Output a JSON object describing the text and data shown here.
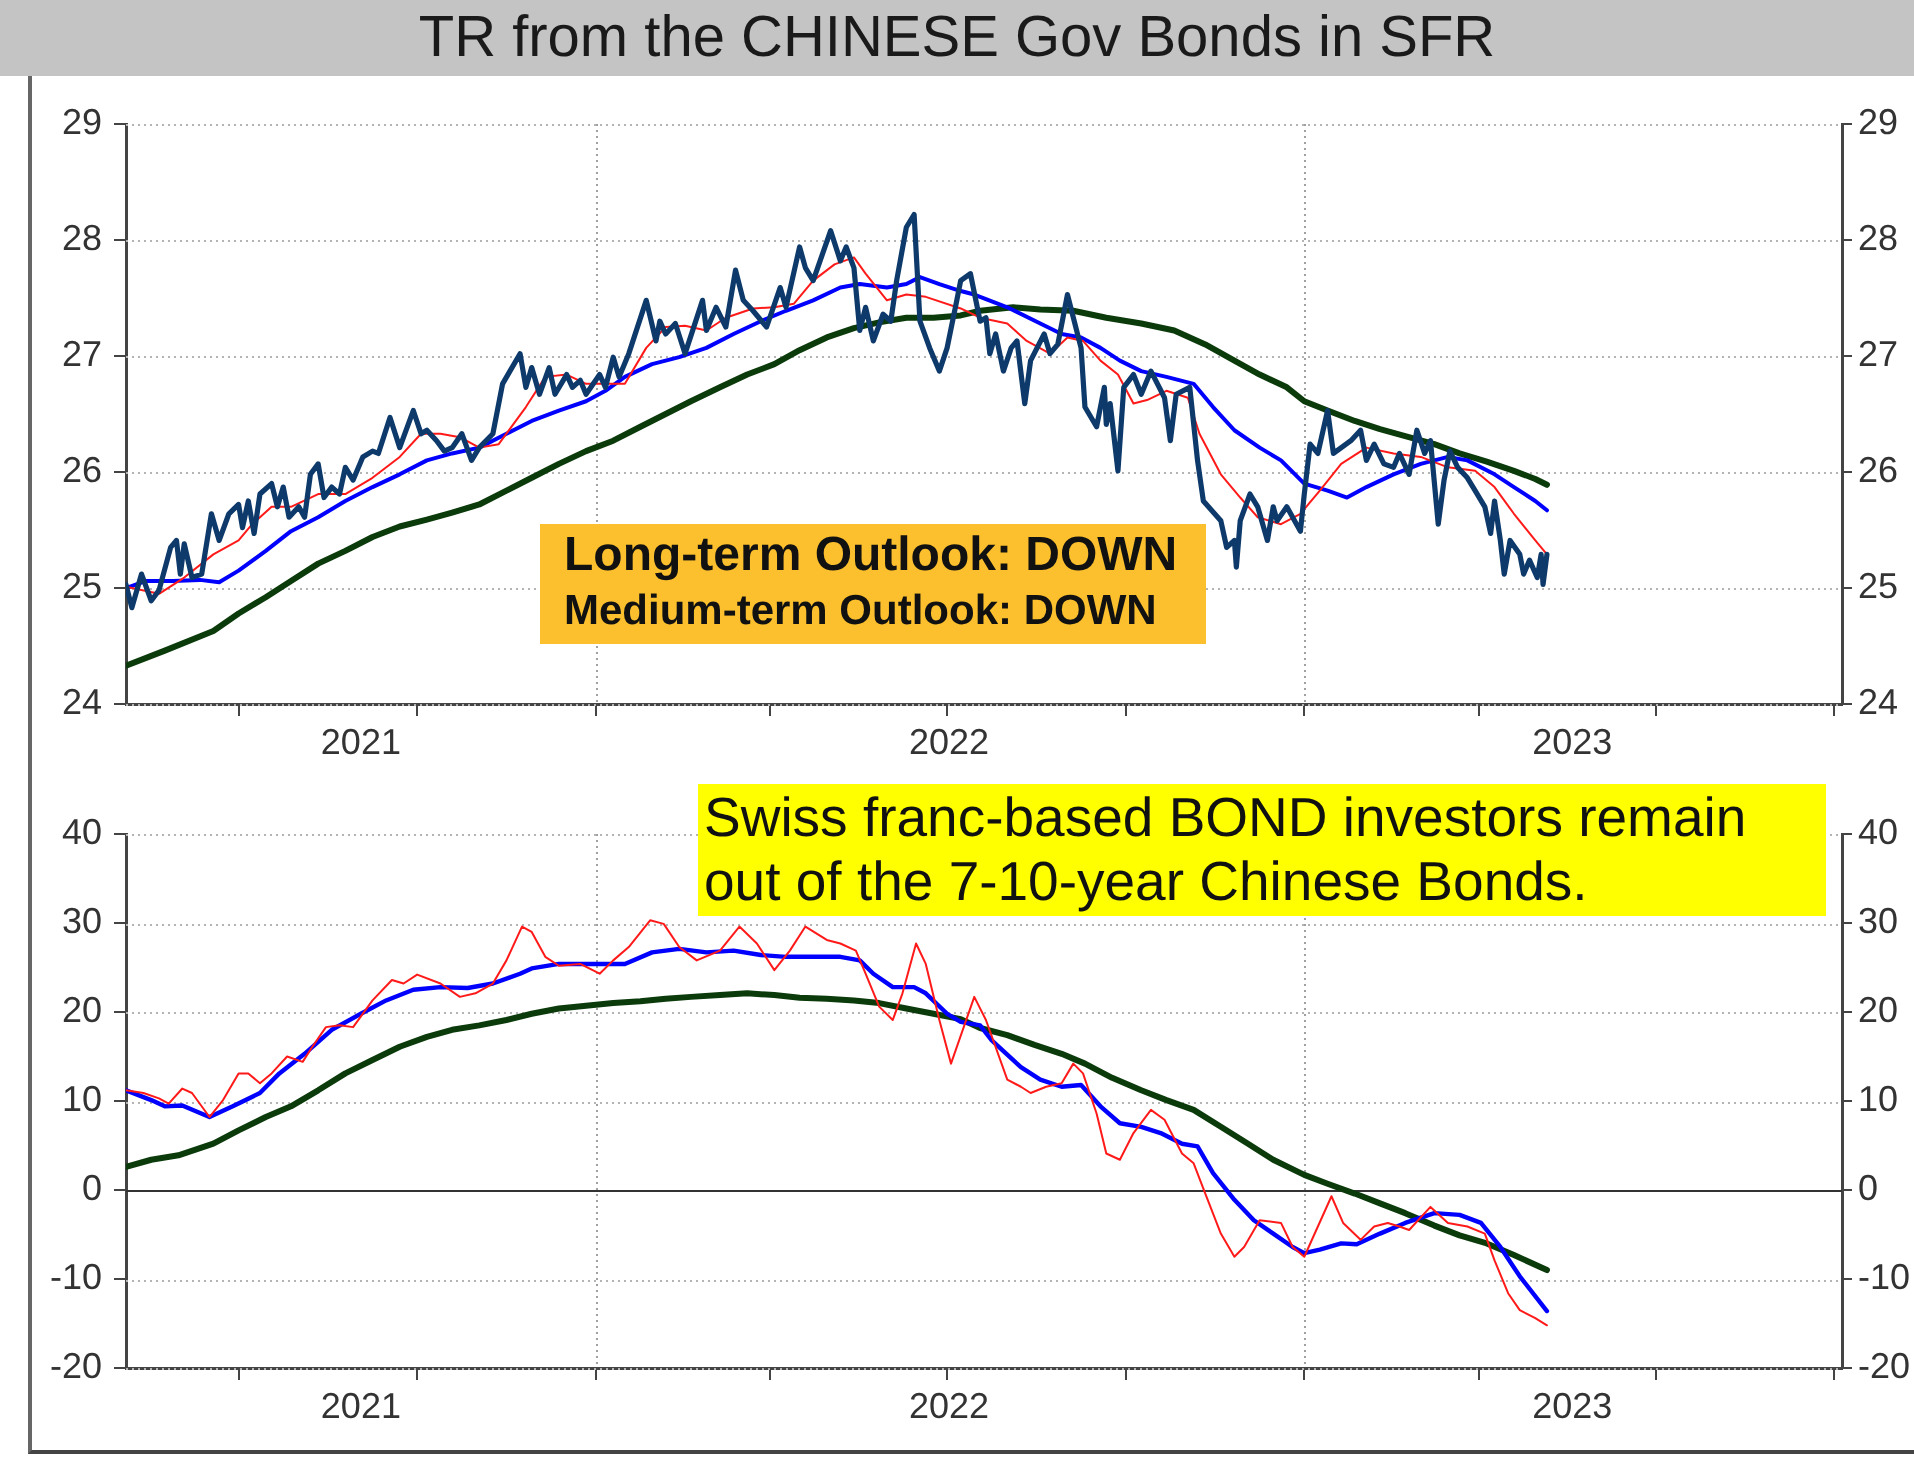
{
  "chart_data": [
    {
      "type": "line",
      "title": "TR from the CHINESE Gov Bonds in SFR",
      "annotations": [
        "Long-term Outlook: DOWN",
        "Medium-term Outlook: DOWN"
      ],
      "xlim": [
        "2021-05-04",
        "2023-10-05"
      ],
      "xticks": [
        {
          "value": "2021-07-01",
          "label": null
        },
        {
          "value": "2021-09-02",
          "label": "2021"
        },
        {
          "value": "2021-10-01",
          "label": null
        },
        {
          "value": "2022-01-01",
          "label": null
        },
        {
          "value": "2022-04-01",
          "label": null
        },
        {
          "value": "2022-07-01",
          "label": null
        },
        {
          "value": "2022-07-02",
          "label": "2022"
        },
        {
          "value": "2022-10-01",
          "label": null
        },
        {
          "value": "2023-01-01",
          "label": null
        },
        {
          "value": "2023-04-01",
          "label": null
        },
        {
          "value": "2023-05-19",
          "label": "2023"
        },
        {
          "value": "2023-07-01",
          "label": null
        },
        {
          "value": "2023-10-01",
          "label": null
        }
      ],
      "ylim": [
        24,
        29
      ],
      "yticks": [
        24,
        25,
        26,
        27,
        28,
        29
      ],
      "y2lim": [
        24,
        29
      ],
      "y2ticks": [
        24,
        25,
        26,
        27,
        28,
        29
      ],
      "grid": "y",
      "ref_lines": [
        {
          "axis": "x",
          "value": "2022-01-01",
          "color": "#a0a0a0",
          "line_style": "dotted"
        },
        {
          "axis": "x",
          "value": "2023-01-01",
          "color": "#a0a0a0",
          "line_style": "dotted"
        }
      ],
      "series": [
        {
          "color": "#0d3a6a",
          "x": [
            "2021-05-04",
            "2021-05-07",
            "2021-05-12",
            "2021-05-17",
            "2021-05-21",
            "2021-05-27",
            "2021-05-30",
            "2021-06-01",
            "2021-06-03",
            "2021-06-07",
            "2021-06-12",
            "2021-06-17",
            "2021-06-21",
            "2021-06-26",
            "2021-07-01",
            "2021-07-03",
            "2021-07-06",
            "2021-07-09",
            "2021-07-12",
            "2021-07-18",
            "2021-07-21",
            "2021-07-24",
            "2021-07-27",
            "2021-08-01",
            "2021-08-04",
            "2021-08-07",
            "2021-08-11",
            "2021-08-14",
            "2021-08-18",
            "2021-08-22",
            "2021-08-25",
            "2021-08-29",
            "2021-09-03",
            "2021-09-08",
            "2021-09-11",
            "2021-09-17",
            "2021-09-22",
            "2021-09-29",
            "2021-10-03",
            "2021-10-06",
            "2021-10-11",
            "2021-10-15",
            "2021-10-19",
            "2021-10-24",
            "2021-10-29",
            "2021-11-02",
            "2021-11-09",
            "2021-11-14",
            "2021-11-23",
            "2021-11-26",
            "2021-11-29",
            "2021-12-03",
            "2021-12-08",
            "2021-12-11",
            "2021-12-17",
            "2021-12-20",
            "2021-12-24",
            "2021-12-27",
            "2022-01-03",
            "2022-01-06",
            "2022-01-10",
            "2022-01-13",
            "2022-01-18",
            "2022-01-27",
            "2022-02-01",
            "2022-02-03",
            "2022-02-06",
            "2022-02-11",
            "2022-02-16",
            "2022-02-25",
            "2022-02-27",
            "2022-03-04",
            "2022-03-09",
            "2022-03-14",
            "2022-03-18",
            "2022-03-23",
            "2022-03-30",
            "2022-04-06",
            "2022-04-09",
            "2022-04-16",
            "2022-04-19",
            "2022-04-23",
            "2022-05-02",
            "2022-05-07",
            "2022-05-10",
            "2022-05-14",
            "2022-05-17",
            "2022-05-20",
            "2022-05-24",
            "2022-05-29",
            "2022-06-02",
            "2022-06-05",
            "2022-06-10",
            "2022-06-14",
            "2022-06-17",
            "2022-06-22",
            "2022-06-27",
            "2022-07-01",
            "2022-07-06",
            "2022-07-08",
            "2022-07-13",
            "2022-07-18",
            "2022-07-21",
            "2022-07-23",
            "2022-07-26",
            "2022-07-30",
            "2022-08-03",
            "2022-08-06",
            "2022-08-10",
            "2022-08-13",
            "2022-08-20",
            "2022-08-23",
            "2022-08-27",
            "2022-09-01",
            "2022-09-08",
            "2022-09-10",
            "2022-09-16",
            "2022-09-20",
            "2022-09-21",
            "2022-09-23",
            "2022-09-27",
            "2022-09-30",
            "2022-10-05",
            "2022-10-09",
            "2022-10-14",
            "2022-10-21",
            "2022-10-24",
            "2022-10-27",
            "2022-11-03",
            "2022-11-07",
            "2022-11-10",
            "2022-11-19",
            "2022-11-22",
            "2022-11-26",
            "2022-11-27",
            "2022-11-29",
            "2022-12-04",
            "2022-12-08",
            "2022-12-13",
            "2022-12-16",
            "2022-12-18",
            "2022-12-23",
            "2022-12-30",
            "2023-01-01",
            "2023-01-04",
            "2023-01-08",
            "2023-01-13",
            "2023-01-16",
            "2023-01-25",
            "2023-01-30",
            "2023-02-02",
            "2023-02-06",
            "2023-02-11",
            "2023-02-16",
            "2023-02-19",
            "2023-02-24",
            "2023-02-28",
            "2023-03-04",
            "2023-03-07",
            "2023-03-11",
            "2023-03-14",
            "2023-03-17",
            "2023-03-21",
            "2023-03-26",
            "2023-03-30",
            "2023-04-04",
            "2023-04-07",
            "2023-04-09",
            "2023-04-12",
            "2023-04-14",
            "2023-04-17",
            "2023-04-22",
            "2023-04-24",
            "2023-04-27",
            "2023-05-01",
            "2023-05-03",
            "2023-05-04",
            "2023-05-06"
          ],
          "values": [
            25.03,
            24.83,
            25.12,
            24.89,
            24.98,
            25.35,
            25.41,
            25.12,
            25.38,
            25.09,
            25.12,
            25.64,
            25.41,
            25.64,
            25.72,
            25.52,
            25.75,
            25.47,
            25.81,
            25.9,
            25.7,
            25.87,
            25.61,
            25.7,
            25.61,
            25.98,
            26.07,
            25.78,
            25.87,
            25.81,
            26.04,
            25.93,
            26.13,
            26.18,
            26.16,
            26.47,
            26.21,
            26.53,
            26.33,
            26.36,
            26.27,
            26.18,
            26.21,
            26.33,
            26.1,
            26.21,
            26.33,
            26.76,
            27.02,
            26.73,
            26.9,
            26.67,
            26.9,
            26.67,
            26.84,
            26.73,
            26.79,
            26.67,
            26.84,
            26.73,
            26.99,
            26.82,
            27.02,
            27.48,
            27.13,
            27.3,
            27.19,
            27.28,
            27.02,
            27.48,
            27.22,
            27.42,
            27.25,
            27.74,
            27.48,
            27.39,
            27.25,
            27.59,
            27.42,
            27.94,
            27.76,
            27.65,
            28.08,
            27.82,
            27.94,
            27.76,
            27.22,
            27.42,
            27.13,
            27.36,
            27.3,
            27.65,
            28.11,
            28.22,
            27.3,
            27.07,
            26.87,
            27.07,
            27.48,
            27.65,
            27.71,
            27.3,
            27.33,
            27.02,
            27.19,
            26.87,
            27.07,
            27.13,
            26.59,
            26.96,
            27.19,
            27.02,
            27.1,
            27.53,
            27.07,
            26.56,
            26.39,
            26.73,
            26.41,
            26.59,
            26.01,
            26.73,
            26.84,
            26.67,
            26.87,
            26.64,
            26.27,
            26.67,
            26.73,
            26.1,
            25.75,
            25.58,
            25.35,
            25.41,
            25.18,
            25.58,
            25.81,
            25.7,
            25.41,
            25.7,
            25.58,
            25.7,
            25.49,
            25.81,
            26.24,
            26.16,
            26.53,
            26.16,
            26.27,
            26.36,
            26.1,
            26.24,
            26.07,
            26.04,
            26.16,
            25.98,
            26.36,
            26.16,
            26.27,
            25.55,
            25.93,
            26.18,
            26.04,
            25.95,
            25.84,
            25.7,
            25.47,
            25.75,
            25.41,
            25.12,
            25.41,
            25.29,
            25.12,
            25.24,
            25.09,
            25.29,
            25.03,
            25.29
          ]
        },
        {
          "color": "#ff1a1a",
          "x": [
            "2021-05-04",
            "2021-05-21",
            "2021-06-03",
            "2021-06-18",
            "2021-07-01",
            "2021-07-08",
            "2021-07-18",
            "2021-07-28",
            "2021-08-11",
            "2021-08-25",
            "2021-09-08",
            "2021-09-22",
            "2021-10-03",
            "2021-10-13",
            "2021-10-23",
            "2021-11-02",
            "2021-11-12",
            "2021-11-26",
            "2021-12-06",
            "2021-12-17",
            "2021-12-27",
            "2022-01-06",
            "2022-01-16",
            "2022-01-27",
            "2022-02-06",
            "2022-02-16",
            "2022-02-27",
            "2022-03-09",
            "2022-03-23",
            "2022-04-03",
            "2022-04-13",
            "2022-04-23",
            "2022-05-04",
            "2022-05-14",
            "2022-05-20",
            "2022-05-31",
            "2022-06-10",
            "2022-06-20",
            "2022-07-08",
            "2022-07-18",
            "2022-08-01",
            "2022-08-11",
            "2022-08-23",
            "2022-09-01",
            "2022-09-09",
            "2022-09-18",
            "2022-09-27",
            "2022-10-05",
            "2022-10-12",
            "2022-10-22",
            "2022-11-02",
            "2022-11-08",
            "2022-11-19",
            "2022-11-29",
            "2022-12-08",
            "2022-12-20",
            "2022-12-30",
            "2023-01-09",
            "2023-01-20",
            "2023-02-02",
            "2023-02-16",
            "2023-03-02",
            "2023-03-16",
            "2023-03-30",
            "2023-04-09",
            "2023-04-19",
            "2023-04-30",
            "2023-05-06"
          ],
          "values": [
            25.01,
            24.95,
            25.09,
            25.29,
            25.41,
            25.55,
            25.7,
            25.7,
            25.81,
            25.81,
            25.95,
            26.13,
            26.33,
            26.33,
            26.3,
            26.21,
            26.24,
            26.56,
            26.82,
            26.84,
            26.76,
            26.76,
            26.76,
            27.07,
            27.25,
            27.26,
            27.22,
            27.33,
            27.41,
            27.42,
            27.45,
            27.65,
            27.79,
            27.85,
            27.71,
            27.48,
            27.53,
            27.51,
            27.41,
            27.33,
            27.28,
            27.13,
            27.02,
            27.16,
            27.13,
            26.96,
            26.84,
            26.59,
            26.62,
            26.7,
            26.64,
            26.33,
            25.98,
            25.78,
            25.61,
            25.55,
            25.64,
            25.84,
            26.07,
            26.21,
            26.16,
            26.13,
            26.04,
            26.01,
            25.87,
            25.64,
            25.41,
            25.29
          ]
        },
        {
          "color": "#0000ff",
          "x": [
            "2021-05-04",
            "2021-05-14",
            "2021-05-28",
            "2021-06-11",
            "2021-06-21",
            "2021-07-01",
            "2021-07-15",
            "2021-07-28",
            "2021-08-11",
            "2021-08-25",
            "2021-09-08",
            "2021-09-22",
            "2021-10-06",
            "2021-10-19",
            "2021-11-02",
            "2021-11-16",
            "2021-11-29",
            "2021-12-13",
            "2021-12-27",
            "2022-01-06",
            "2022-01-16",
            "2022-01-30",
            "2022-02-13",
            "2022-02-27",
            "2022-03-13",
            "2022-03-27",
            "2022-04-09",
            "2022-04-23",
            "2022-05-07",
            "2022-05-17",
            "2022-05-31",
            "2022-06-10",
            "2022-06-17",
            "2022-06-27",
            "2022-07-08",
            "2022-07-15",
            "2022-08-01",
            "2022-08-18",
            "2022-08-29",
            "2022-09-08",
            "2022-09-18",
            "2022-09-28",
            "2022-10-09",
            "2022-10-22",
            "2022-11-05",
            "2022-11-15",
            "2022-11-26",
            "2022-12-09",
            "2022-12-20",
            "2023-01-01",
            "2023-01-13",
            "2023-01-23",
            "2023-02-02",
            "2023-02-16",
            "2023-03-02",
            "2023-03-16",
            "2023-03-26",
            "2023-04-09",
            "2023-04-19",
            "2023-04-30",
            "2023-05-06"
          ],
          "values": [
            25.0,
            25.06,
            25.06,
            25.07,
            25.05,
            25.15,
            25.32,
            25.49,
            25.61,
            25.75,
            25.87,
            25.98,
            26.1,
            26.16,
            26.21,
            26.33,
            26.44,
            26.53,
            26.61,
            26.7,
            26.82,
            26.93,
            26.99,
            27.07,
            27.19,
            27.3,
            27.39,
            27.48,
            27.59,
            27.62,
            27.59,
            27.62,
            27.68,
            27.62,
            27.56,
            27.53,
            27.42,
            27.28,
            27.19,
            27.16,
            27.07,
            26.96,
            26.87,
            26.82,
            26.76,
            26.56,
            26.36,
            26.21,
            26.1,
            25.9,
            25.84,
            25.78,
            25.87,
            25.98,
            26.07,
            26.13,
            26.1,
            25.98,
            25.87,
            25.75,
            25.67
          ]
        },
        {
          "color": "#0b3a0b",
          "x": [
            "2021-05-04",
            "2021-05-24",
            "2021-06-18",
            "2021-07-01",
            "2021-07-15",
            "2021-07-28",
            "2021-08-11",
            "2021-08-25",
            "2021-09-08",
            "2021-09-22",
            "2021-10-06",
            "2021-10-19",
            "2021-11-02",
            "2021-11-16",
            "2021-11-29",
            "2021-12-13",
            "2021-12-27",
            "2022-01-10",
            "2022-01-24",
            "2022-02-06",
            "2022-02-19",
            "2022-03-06",
            "2022-03-20",
            "2022-04-03",
            "2022-04-16",
            "2022-04-30",
            "2022-05-14",
            "2022-05-27",
            "2022-06-10",
            "2022-06-24",
            "2022-07-08",
            "2022-07-18",
            "2022-08-04",
            "2022-08-18",
            "2022-09-04",
            "2022-09-21",
            "2022-10-09",
            "2022-10-26",
            "2022-11-11",
            "2022-11-26",
            "2022-12-09",
            "2022-12-23",
            "2023-01-01",
            "2023-01-13",
            "2023-01-27",
            "2023-02-09",
            "2023-02-22",
            "2023-03-09",
            "2023-03-22",
            "2023-04-05",
            "2023-04-19",
            "2023-04-30",
            "2023-05-06"
          ],
          "values": [
            24.33,
            24.46,
            24.63,
            24.78,
            24.92,
            25.06,
            25.21,
            25.32,
            25.44,
            25.53,
            25.59,
            25.65,
            25.72,
            25.84,
            25.95,
            26.07,
            26.18,
            26.27,
            26.39,
            26.5,
            26.61,
            26.73,
            26.84,
            26.93,
            27.05,
            27.16,
            27.24,
            27.29,
            27.33,
            27.33,
            27.35,
            27.39,
            27.42,
            27.4,
            27.39,
            27.33,
            27.28,
            27.22,
            27.1,
            26.96,
            26.84,
            26.73,
            26.61,
            26.53,
            26.44,
            26.37,
            26.31,
            26.24,
            26.16,
            26.09,
            26.01,
            25.94,
            25.89
          ]
        }
      ]
    },
    {
      "type": "line",
      "annotations": [
        "Swiss franc-based BOND investors remain out of the 7-10-year Chinese Bonds."
      ],
      "xlim": [
        "2021-05-04",
        "2023-10-05"
      ],
      "xticks": [
        {
          "value": "2021-07-01",
          "label": null
        },
        {
          "value": "2021-09-02",
          "label": "2021"
        },
        {
          "value": "2021-10-01",
          "label": null
        },
        {
          "value": "2022-01-01",
          "label": null
        },
        {
          "value": "2022-04-01",
          "label": null
        },
        {
          "value": "2022-07-01",
          "label": null
        },
        {
          "value": "2022-07-02",
          "label": "2022"
        },
        {
          "value": "2022-10-01",
          "label": null
        },
        {
          "value": "2023-01-01",
          "label": null
        },
        {
          "value": "2023-04-01",
          "label": null
        },
        {
          "value": "2023-05-19",
          "label": "2023"
        },
        {
          "value": "2023-07-01",
          "label": null
        },
        {
          "value": "2023-10-01",
          "label": null
        }
      ],
      "ylim": [
        -20,
        40
      ],
      "yticks": [
        -20,
        -10,
        0,
        10,
        20,
        30,
        40
      ],
      "y2lim": [
        -20,
        40
      ],
      "y2ticks": [
        -20,
        -10,
        0,
        10,
        20,
        30,
        40
      ],
      "grid": "y",
      "ref_lines": [
        {
          "axis": "x",
          "value": "2022-01-01",
          "color": "#a0a0a0",
          "line_style": "dotted"
        },
        {
          "axis": "x",
          "value": "2023-01-01",
          "color": "#a0a0a0",
          "line_style": "dotted"
        },
        {
          "axis": "y",
          "value": 0,
          "color": "#333333",
          "line_style": "solid"
        }
      ],
      "series": [
        {
          "color": "#ff1a1a",
          "x": [
            "2021-05-04",
            "2021-05-13",
            "2021-05-21",
            "2021-05-26",
            "2021-06-02",
            "2021-06-07",
            "2021-06-16",
            "2021-06-23",
            "2021-07-01",
            "2021-07-06",
            "2021-07-12",
            "2021-07-18",
            "2021-07-26",
            "2021-08-03",
            "2021-08-08",
            "2021-08-15",
            "2021-08-22",
            "2021-08-29",
            "2021-09-08",
            "2021-09-18",
            "2021-09-24",
            "2021-10-01",
            "2021-10-13",
            "2021-10-23",
            "2021-10-31",
            "2021-11-09",
            "2021-11-16",
            "2021-11-24",
            "2021-11-29",
            "2021-12-06",
            "2021-12-13",
            "2021-12-24",
            "2022-01-03",
            "2022-01-10",
            "2022-01-18",
            "2022-01-29",
            "2022-02-05",
            "2022-02-13",
            "2022-02-22",
            "2022-03-06",
            "2022-03-16",
            "2022-03-25",
            "2022-04-03",
            "2022-04-11",
            "2022-04-19",
            "2022-04-30",
            "2022-05-07",
            "2022-05-15",
            "2022-05-20",
            "2022-05-27",
            "2022-06-03",
            "2022-06-08",
            "2022-06-15",
            "2022-06-20",
            "2022-06-27",
            "2022-07-03",
            "2022-07-15",
            "2022-07-21",
            "2022-08-01",
            "2022-08-08",
            "2022-08-13",
            "2022-08-21",
            "2022-08-29",
            "2022-09-04",
            "2022-09-09",
            "2022-09-16",
            "2022-09-21",
            "2022-09-28",
            "2022-10-05",
            "2022-10-14",
            "2022-10-21",
            "2022-10-30",
            "2022-11-05",
            "2022-11-11",
            "2022-11-19",
            "2022-11-26",
            "2022-12-01",
            "2022-12-09",
            "2022-12-20",
            "2022-12-26",
            "2023-01-01",
            "2023-01-08",
            "2023-01-15",
            "2023-01-21",
            "2023-01-30",
            "2023-02-06",
            "2023-02-13",
            "2023-02-19",
            "2023-02-24",
            "2023-03-07",
            "2023-03-16",
            "2023-03-26",
            "2023-04-04",
            "2023-04-09",
            "2023-04-16",
            "2023-04-22",
            "2023-04-30",
            "2023-05-06"
          ],
          "values": [
            11.2,
            10.9,
            10.3,
            9.7,
            11.4,
            10.9,
            8.2,
            10.1,
            13.1,
            13.1,
            12.0,
            13.1,
            15.0,
            14.4,
            16.1,
            18.3,
            18.5,
            18.3,
            21.3,
            23.6,
            23.2,
            24.2,
            23.2,
            21.7,
            22.1,
            23.2,
            25.8,
            29.6,
            29.0,
            26.2,
            25.2,
            25.4,
            24.3,
            25.8,
            27.3,
            30.3,
            29.9,
            27.3,
            25.8,
            26.9,
            29.6,
            27.7,
            24.7,
            26.9,
            29.6,
            28.1,
            27.7,
            26.9,
            24.3,
            20.6,
            19.1,
            22.1,
            27.7,
            25.4,
            19.1,
            14.2,
            21.7,
            19.1,
            12.4,
            11.6,
            10.9,
            11.6,
            12.0,
            14.2,
            13.1,
            8.6,
            4.1,
            3.4,
            6.4,
            9.0,
            7.9,
            4.1,
            3.0,
            -0.4,
            -4.9,
            -7.5,
            -6.4,
            -3.4,
            -3.7,
            -6.4,
            -7.5,
            -4.1,
            -0.7,
            -3.7,
            -5.6,
            -4.1,
            -3.7,
            -4.1,
            -4.5,
            -1.9,
            -3.7,
            -4.1,
            -4.9,
            -7.9,
            -11.6,
            -13.5,
            -14.4,
            -15.2
          ]
        },
        {
          "color": "#0000ff",
          "x": [
            "2021-05-04",
            "2021-05-17",
            "2021-05-24",
            "2021-06-02",
            "2021-06-16",
            "2021-06-28",
            "2021-07-12",
            "2021-07-22",
            "2021-08-04",
            "2021-08-18",
            "2021-09-02",
            "2021-09-15",
            "2021-09-29",
            "2021-10-13",
            "2021-10-27",
            "2021-11-09",
            "2021-11-23",
            "2021-11-29",
            "2021-12-13",
            "2021-12-27",
            "2022-01-16",
            "2022-01-30",
            "2022-02-13",
            "2022-02-27",
            "2022-03-13",
            "2022-03-27",
            "2022-04-09",
            "2022-04-23",
            "2022-05-07",
            "2022-05-17",
            "2022-05-24",
            "2022-06-03",
            "2022-06-14",
            "2022-06-20",
            "2022-07-01",
            "2022-07-08",
            "2022-07-18",
            "2022-07-24",
            "2022-08-08",
            "2022-08-18",
            "2022-08-29",
            "2022-09-08",
            "2022-09-18",
            "2022-09-28",
            "2022-10-09",
            "2022-10-19",
            "2022-10-30",
            "2022-11-07",
            "2022-11-15",
            "2022-11-26",
            "2022-12-06",
            "2022-12-16",
            "2022-12-26",
            "2023-01-01",
            "2023-01-09",
            "2023-01-20",
            "2023-01-28",
            "2023-02-09",
            "2023-02-22",
            "2023-03-09",
            "2023-03-22",
            "2023-04-02",
            "2023-04-12",
            "2023-04-22",
            "2023-05-06"
          ],
          "values": [
            11.2,
            10.1,
            9.4,
            9.5,
            8.2,
            9.4,
            10.9,
            13.1,
            15.3,
            18.0,
            19.8,
            21.3,
            22.5,
            22.8,
            22.7,
            23.2,
            24.3,
            24.9,
            25.4,
            25.4,
            25.4,
            26.7,
            27.1,
            26.7,
            26.9,
            26.4,
            26.2,
            26.2,
            26.2,
            25.8,
            24.3,
            22.8,
            22.8,
            22.1,
            19.8,
            18.9,
            18.5,
            16.8,
            13.8,
            12.4,
            11.6,
            11.8,
            9.4,
            7.5,
            7.1,
            6.4,
            5.2,
            4.9,
            1.9,
            -1.1,
            -3.4,
            -4.9,
            -6.4,
            -7.1,
            -6.7,
            -6.0,
            -6.1,
            -4.9,
            -3.7,
            -2.6,
            -2.8,
            -3.7,
            -6.4,
            -9.7,
            -13.6
          ]
        },
        {
          "color": "#0b3a0b",
          "x": [
            "2021-05-04",
            "2021-05-17",
            "2021-05-31",
            "2021-06-18",
            "2021-07-01",
            "2021-07-15",
            "2021-07-28",
            "2021-08-11",
            "2021-08-25",
            "2021-09-08",
            "2021-09-22",
            "2021-10-06",
            "2021-10-19",
            "2021-11-02",
            "2021-11-16",
            "2021-11-29",
            "2021-12-13",
            "2021-12-27",
            "2022-01-10",
            "2022-01-24",
            "2022-02-06",
            "2022-02-19",
            "2022-03-06",
            "2022-03-20",
            "2022-04-03",
            "2022-04-16",
            "2022-04-30",
            "2022-05-14",
            "2022-05-27",
            "2022-06-10",
            "2022-06-24",
            "2022-07-08",
            "2022-07-18",
            "2022-08-01",
            "2022-08-15",
            "2022-08-29",
            "2022-09-10",
            "2022-09-24",
            "2022-10-09",
            "2022-10-22",
            "2022-11-05",
            "2022-11-19",
            "2022-12-03",
            "2022-12-16",
            "2023-01-01",
            "2023-01-13",
            "2023-01-27",
            "2023-02-09",
            "2023-02-22",
            "2023-03-09",
            "2023-03-22",
            "2023-04-05",
            "2023-04-19",
            "2023-05-06"
          ],
          "values": [
            2.6,
            3.4,
            3.9,
            5.2,
            6.7,
            8.2,
            9.4,
            11.2,
            13.1,
            14.6,
            16.1,
            17.2,
            18.0,
            18.5,
            19.1,
            19.8,
            20.4,
            20.7,
            21.0,
            21.2,
            21.5,
            21.7,
            21.9,
            22.1,
            21.9,
            21.6,
            21.5,
            21.3,
            21.0,
            20.4,
            19.8,
            19.2,
            18.2,
            17.4,
            16.3,
            15.3,
            14.2,
            12.6,
            11.2,
            10.1,
            9.0,
            7.1,
            5.2,
            3.4,
            1.7,
            0.7,
            -0.4,
            -1.5,
            -2.6,
            -4.0,
            -5.1,
            -6.0,
            -7.3,
            -9.0
          ]
        }
      ]
    }
  ]
}
